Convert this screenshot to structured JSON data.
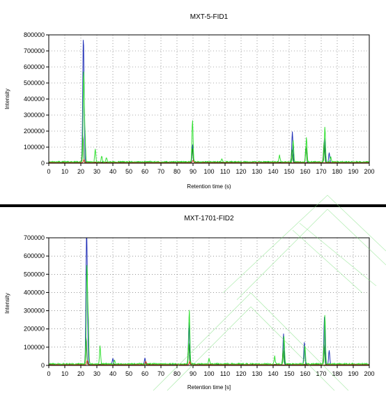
{
  "chart_data": [
    {
      "type": "line",
      "title": "MXT-5-FID1",
      "xlabel": "Retention time (s)",
      "ylabel": "Intensity",
      "xlim": [
        0,
        200
      ],
      "ylim": [
        0,
        800000
      ],
      "xticks": [
        0,
        10,
        20,
        30,
        40,
        50,
        60,
        70,
        80,
        90,
        100,
        110,
        120,
        130,
        140,
        150,
        160,
        170,
        180,
        190,
        200
      ],
      "yticks": [
        0,
        100000,
        200000,
        300000,
        400000,
        500000,
        600000,
        700000,
        800000
      ],
      "grid": true,
      "series": [
        {
          "color": "#2433b8",
          "baseline": 3000,
          "peaks": [
            [
              21.5,
              660000
            ],
            [
              22.0,
              280000
            ],
            [
              89.8,
              110000
            ],
            [
              152.0,
              190000
            ],
            [
              172.0,
              150000
            ],
            [
              175.0,
              60000
            ]
          ]
        },
        {
          "color": "#138a13",
          "baseline": 4000,
          "peaks": [
            [
              21.3,
              170000
            ],
            [
              89.6,
              90000
            ],
            [
              151.8,
              80000
            ],
            [
              160.5,
              100000
            ],
            [
              171.8,
              120000
            ]
          ]
        },
        {
          "color": "#34e034",
          "baseline": 6000,
          "peaks": [
            [
              21.8,
              560000
            ],
            [
              22.6,
              160000
            ],
            [
              29.0,
              80000
            ],
            [
              33.0,
              35000
            ],
            [
              36.0,
              30000
            ],
            [
              89.7,
              260000
            ],
            [
              108.0,
              20000
            ],
            [
              144.0,
              40000
            ],
            [
              152.5,
              130000
            ],
            [
              160.8,
              150000
            ],
            [
              172.3,
              220000
            ],
            [
              176.0,
              30000
            ]
          ]
        },
        {
          "color": "#d23a1a",
          "baseline": 2000,
          "peaks": [
            [
              22.0,
              20000
            ],
            [
              90.0,
              15000
            ]
          ]
        }
      ]
    },
    {
      "type": "line",
      "title": "MXT-1701-FID2",
      "xlabel": "Retention time [s]",
      "ylabel": "Intensity",
      "xlim": [
        0,
        200
      ],
      "ylim": [
        0,
        700000
      ],
      "xticks": [
        0,
        10,
        20,
        30,
        40,
        50,
        60,
        70,
        80,
        90,
        100,
        110,
        120,
        130,
        140,
        150,
        160,
        170,
        180,
        190,
        200
      ],
      "yticks": [
        0,
        100000,
        200000,
        300000,
        400000,
        500000,
        600000,
        700000
      ],
      "grid": true,
      "series": [
        {
          "color": "#2433b8",
          "baseline": 3000,
          "peaks": [
            [
              23.5,
              610000
            ],
            [
              24.0,
              330000
            ],
            [
              40.0,
              35000
            ],
            [
              60.0,
              35000
            ],
            [
              87.5,
              230000
            ],
            [
              146.5,
              170000
            ],
            [
              159.5,
              120000
            ],
            [
              172.0,
              260000
            ],
            [
              175.0,
              80000
            ]
          ]
        },
        {
          "color": "#138a13",
          "baseline": 4000,
          "peaks": [
            [
              23.3,
              150000
            ],
            [
              87.3,
              120000
            ],
            [
              146.3,
              80000
            ],
            [
              171.8,
              110000
            ]
          ]
        },
        {
          "color": "#34e034",
          "baseline": 6000,
          "peaks": [
            [
              23.8,
              530000
            ],
            [
              24.6,
              250000
            ],
            [
              32.0,
              100000
            ],
            [
              41.0,
              20000
            ],
            [
              87.7,
              300000
            ],
            [
              100.0,
              30000
            ],
            [
              146.8,
              150000
            ],
            [
              159.8,
              100000
            ],
            [
              172.3,
              270000
            ],
            [
              141.0,
              40000
            ]
          ]
        },
        {
          "color": "#d23a1a",
          "baseline": 2000,
          "peaks": [
            [
              24.0,
              25000
            ],
            [
              60.5,
              20000
            ],
            [
              88.0,
              20000
            ]
          ]
        }
      ]
    }
  ]
}
